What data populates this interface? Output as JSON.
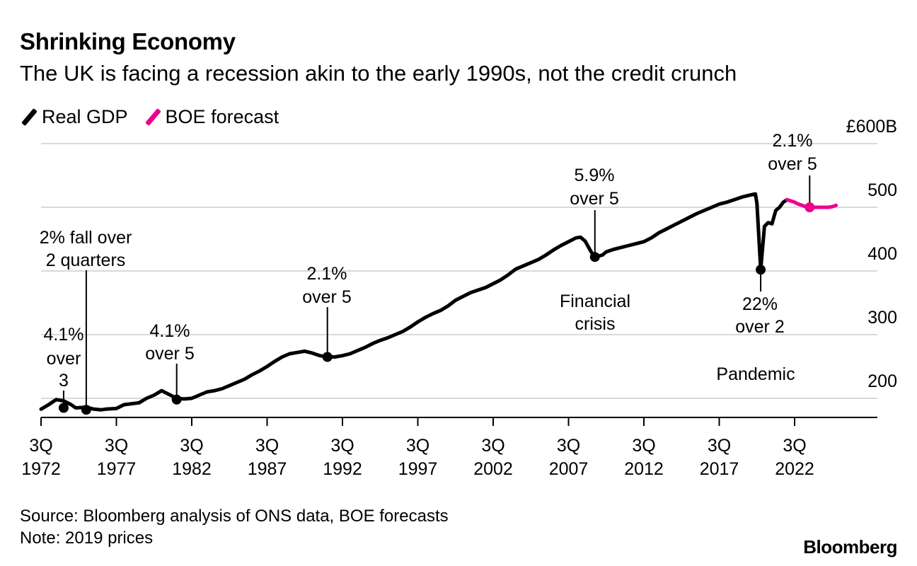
{
  "header": {
    "title": "Shrinking Economy",
    "subtitle": "The UK is facing a recession akin to the early 1990s, not the credit crunch"
  },
  "legend": [
    {
      "label": "Real GDP",
      "color": "#000000"
    },
    {
      "label": "BOE forecast",
      "color": "#ec008c"
    }
  ],
  "footer": {
    "source": "Source: Bloomberg analysis of ONS data, BOE forecasts",
    "note": "Note: 2019 prices",
    "brand": "Bloomberg"
  },
  "chart_data": {
    "type": "line",
    "y_unit_label": "£600B",
    "ylim": [
      170,
      600
    ],
    "y_ticks": [
      200,
      300,
      400,
      500,
      600
    ],
    "y_tick_labels": [
      "200",
      "300",
      "400",
      "500",
      "£600B"
    ],
    "xlim": [
      1972.5,
      2028.5
    ],
    "x_ticks": [
      1972.5,
      1977.5,
      1982.5,
      1987.5,
      1992.5,
      1997.5,
      2002.5,
      2007.5,
      2012.5,
      2017.5,
      2022.5
    ],
    "x_tick_labels": [
      [
        "3Q",
        "1972"
      ],
      [
        "3Q",
        "1977"
      ],
      [
        "3Q",
        "1982"
      ],
      [
        "3Q",
        "1987"
      ],
      [
        "3Q",
        "1992"
      ],
      [
        "3Q",
        "1997"
      ],
      [
        "3Q",
        "2002"
      ],
      [
        "3Q",
        "2007"
      ],
      [
        "3Q",
        "2012"
      ],
      [
        "3Q",
        "2017"
      ],
      [
        "3Q",
        "2022"
      ]
    ],
    "grid": true,
    "legend_position": "top-left",
    "series": [
      {
        "name": "Real GDP",
        "color": "#000000",
        "points": [
          [
            1972.5,
            183
          ],
          [
            1973.0,
            190
          ],
          [
            1973.5,
            198
          ],
          [
            1974.0,
            196
          ],
          [
            1974.5,
            190
          ],
          [
            1974.8,
            185
          ],
          [
            1975.5,
            186
          ],
          [
            1976.0,
            183
          ],
          [
            1976.5,
            182
          ],
          [
            1976.8,
            183
          ],
          [
            1977.5,
            184
          ],
          [
            1978.0,
            190
          ],
          [
            1979.0,
            193
          ],
          [
            1979.5,
            200
          ],
          [
            1980.0,
            205
          ],
          [
            1980.5,
            212
          ],
          [
            1981.0,
            206
          ],
          [
            1981.5,
            200
          ],
          [
            1982.0,
            199
          ],
          [
            1982.5,
            200
          ],
          [
            1983.0,
            205
          ],
          [
            1983.5,
            210
          ],
          [
            1984.0,
            212
          ],
          [
            1984.5,
            215
          ],
          [
            1985.0,
            220
          ],
          [
            1985.5,
            225
          ],
          [
            1986.0,
            230
          ],
          [
            1986.5,
            237
          ],
          [
            1987.0,
            243
          ],
          [
            1987.5,
            250
          ],
          [
            1988.0,
            258
          ],
          [
            1988.5,
            265
          ],
          [
            1989.0,
            270
          ],
          [
            1989.5,
            272
          ],
          [
            1990.0,
            274
          ],
          [
            1990.5,
            271
          ],
          [
            1991.0,
            267
          ],
          [
            1991.5,
            265
          ],
          [
            1992.0,
            265
          ],
          [
            1992.5,
            267
          ],
          [
            1993.0,
            270
          ],
          [
            1993.5,
            275
          ],
          [
            1994.0,
            280
          ],
          [
            1994.5,
            286
          ],
          [
            1995.0,
            291
          ],
          [
            1995.5,
            295
          ],
          [
            1996.0,
            300
          ],
          [
            1996.5,
            305
          ],
          [
            1997.0,
            312
          ],
          [
            1997.5,
            320
          ],
          [
            1998.0,
            327
          ],
          [
            1998.5,
            333
          ],
          [
            1999.0,
            338
          ],
          [
            1999.5,
            345
          ],
          [
            2000.0,
            354
          ],
          [
            2000.5,
            360
          ],
          [
            2001.0,
            366
          ],
          [
            2001.5,
            370
          ],
          [
            2002.0,
            374
          ],
          [
            2002.5,
            380
          ],
          [
            2003.0,
            386
          ],
          [
            2003.5,
            394
          ],
          [
            2004.0,
            403
          ],
          [
            2004.5,
            408
          ],
          [
            2005.0,
            413
          ],
          [
            2005.5,
            418
          ],
          [
            2006.0,
            425
          ],
          [
            2006.5,
            433
          ],
          [
            2007.0,
            440
          ],
          [
            2007.5,
            446
          ],
          [
            2008.0,
            452
          ],
          [
            2008.3,
            453
          ],
          [
            2008.6,
            447
          ],
          [
            2009.0,
            430
          ],
          [
            2009.25,
            422
          ],
          [
            2009.75,
            425
          ],
          [
            2010.0,
            430
          ],
          [
            2010.5,
            434
          ],
          [
            2011.0,
            437
          ],
          [
            2011.5,
            440
          ],
          [
            2012.0,
            443
          ],
          [
            2012.5,
            446
          ],
          [
            2013.0,
            452
          ],
          [
            2013.5,
            460
          ],
          [
            2014.0,
            466
          ],
          [
            2014.5,
            472
          ],
          [
            2015.0,
            478
          ],
          [
            2015.5,
            484
          ],
          [
            2016.0,
            490
          ],
          [
            2016.5,
            495
          ],
          [
            2017.0,
            500
          ],
          [
            2017.5,
            505
          ],
          [
            2018.0,
            508
          ],
          [
            2018.5,
            512
          ],
          [
            2019.0,
            516
          ],
          [
            2019.5,
            519
          ],
          [
            2019.9,
            521
          ],
          [
            2020.0,
            506
          ],
          [
            2020.25,
            402
          ],
          [
            2020.5,
            470
          ],
          [
            2020.75,
            476
          ],
          [
            2021.0,
            474
          ],
          [
            2021.25,
            495
          ],
          [
            2021.5,
            500
          ],
          [
            2021.75,
            508
          ],
          [
            2022.0,
            512
          ]
        ]
      },
      {
        "name": "BOE forecast",
        "color": "#ec008c",
        "points": [
          [
            2022.0,
            512
          ],
          [
            2022.25,
            510
          ],
          [
            2022.5,
            508
          ],
          [
            2022.75,
            505
          ],
          [
            2023.0,
            503
          ],
          [
            2023.25,
            501
          ],
          [
            2023.5,
            500
          ],
          [
            2023.75,
            500
          ],
          [
            2024.0,
            500
          ],
          [
            2024.25,
            500
          ],
          [
            2024.5,
            500
          ],
          [
            2024.75,
            500
          ],
          [
            2025.0,
            501
          ],
          [
            2025.25,
            503
          ]
        ]
      }
    ],
    "annotations": [
      {
        "label": [
          "4.1%",
          "over",
          "3"
        ],
        "point": [
          1974.0,
          185
        ]
      },
      {
        "label": [
          "2% fall over",
          "2 quarters"
        ],
        "point": [
          1975.5,
          182
        ]
      },
      {
        "label": [
          "4.1%",
          "over 5"
        ],
        "point": [
          1981.5,
          198
        ]
      },
      {
        "label": [
          "2.1%",
          "over 5"
        ],
        "point": [
          1991.5,
          265
        ]
      },
      {
        "label": [
          "5.9%",
          "over 5"
        ],
        "point": [
          2009.25,
          422
        ]
      },
      {
        "label": [
          "Financial",
          "crisis"
        ],
        "point": null
      },
      {
        "label": [
          "22%",
          "over 2"
        ],
        "point": [
          2020.25,
          402
        ]
      },
      {
        "label": [
          "Pandemic"
        ],
        "point": null
      },
      {
        "label": [
          "2.1%",
          "over 5"
        ],
        "point": [
          2023.5,
          500
        ]
      }
    ]
  }
}
